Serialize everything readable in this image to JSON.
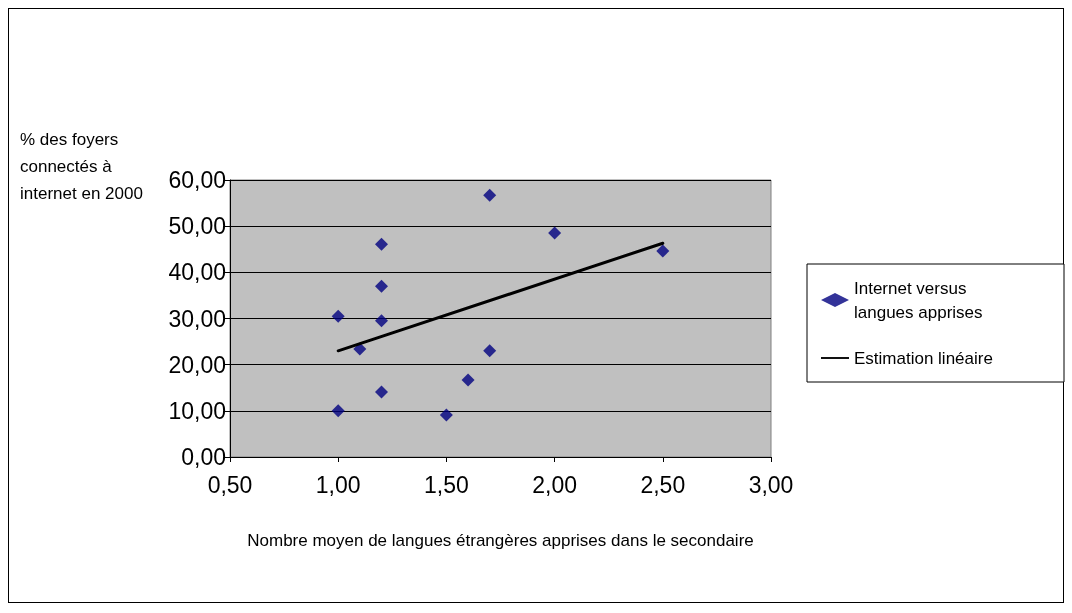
{
  "chart_data": {
    "type": "scatter",
    "xlabel": "Nombre moyen de langues étrangères apprises dans le secondaire",
    "ylabel": "% des foyers connectés à internet en 2000",
    "series": [
      {
        "name": "Internet versus langues apprises",
        "color": "#000080",
        "marker": "diamond",
        "x": [
          1.0,
          1.0,
          1.1,
          1.2,
          1.2,
          1.2,
          1.2,
          1.5,
          1.6,
          1.7,
          1.7,
          2.0,
          2.5
        ],
        "values": [
          30.5,
          10.0,
          23.4,
          46.1,
          37.0,
          29.5,
          14.1,
          9.1,
          16.7,
          56.7,
          23.0,
          48.5,
          44.6
        ]
      },
      {
        "name": "Estimation linéaire",
        "type": "line",
        "color": "#000000",
        "marker": "none",
        "x": [
          1.0,
          2.5
        ],
        "values": [
          23.0,
          46.3
        ]
      }
    ],
    "xlim": [
      0.5,
      3
    ],
    "xticks": [
      {
        "value": 0.5,
        "label": "0,50"
      },
      {
        "value": 1,
        "label": "1,00"
      },
      {
        "value": 1.5,
        "label": "1,50"
      },
      {
        "value": 2,
        "label": "2,00"
      },
      {
        "value": 2.5,
        "label": "2,50"
      },
      {
        "value": 3,
        "label": "3,00"
      }
    ],
    "ylim": [
      0,
      60
    ],
    "yticks": [
      {
        "value": 0,
        "label": "0,00"
      },
      {
        "value": 10,
        "label": "10,00"
      },
      {
        "value": 20,
        "label": "20,00"
      },
      {
        "value": 30,
        "label": "30,00"
      },
      {
        "value": 40,
        "label": "40,00"
      },
      {
        "value": 50,
        "label": "50,00"
      },
      {
        "value": 60,
        "label": "60,00"
      }
    ],
    "grid": "y",
    "legend": "right"
  }
}
